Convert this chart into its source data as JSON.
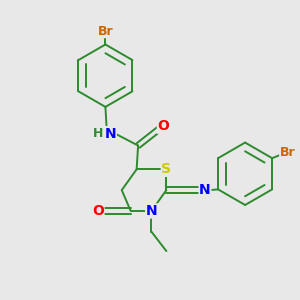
{
  "background_color": "#e8e8e8",
  "bond_color": "#2d8a2d",
  "atom_colors": {
    "N": "#0000ff",
    "O": "#ff0000",
    "S": "#cccc00",
    "Br": "#cc6600",
    "H": "#2d8a2d",
    "C": "#2d8a2d"
  },
  "figsize": [
    3.0,
    3.0
  ],
  "dpi": 100
}
